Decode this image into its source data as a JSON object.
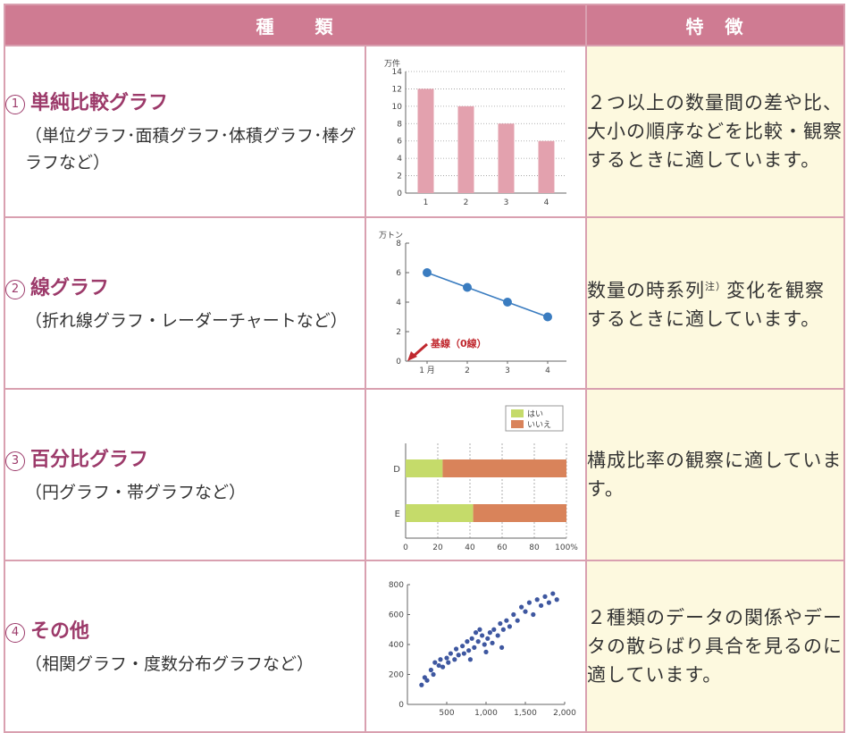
{
  "header": {
    "type": "種　　類",
    "feature": "特　徴"
  },
  "rows": [
    {
      "num": "1",
      "name": "単純比較グラフ",
      "sub": "（単位グラフ･面積グラフ･体積グラフ･棒グラフなど）",
      "feature": "２つ以上の数量間の差や比、大小の順序などを比較・観察するときに適しています。"
    },
    {
      "num": "2",
      "name": "線グラフ",
      "sub": "（折れ線グラフ・レーダーチャートなど）",
      "feature_a": "数量の時系列",
      "feature_sup": "注）",
      "feature_b": "変化を観察するときに適しています。"
    },
    {
      "num": "3",
      "name": "百分比グラフ",
      "sub": "（円グラフ・帯グラフなど）",
      "feature": "構成比率の観察に適しています。"
    },
    {
      "num": "4",
      "name": "その他",
      "sub": "（相関グラフ・度数分布グラフなど）",
      "feature": "２種類のデータの関係やデータの散らばり具合を見るのに適しています。"
    }
  ],
  "colors": {
    "header": "#cf7b92",
    "bar": "#e3a1ae",
    "line": "#3a7cc0",
    "yes": "#c5db6a",
    "no": "#d9835a",
    "dots": "#3e57a0"
  },
  "chart_data": [
    {
      "type": "bar",
      "ylabel": "万件",
      "categories": [
        "1",
        "2",
        "3",
        "4"
      ],
      "values": [
        12,
        10,
        8,
        6
      ],
      "ylim": [
        0,
        14
      ],
      "yticks": [
        0,
        2,
        4,
        6,
        8,
        10,
        12,
        14
      ]
    },
    {
      "type": "line",
      "ylabel": "万トン",
      "x": [
        "1 月",
        "2",
        "3",
        "4"
      ],
      "values": [
        6,
        5,
        4,
        3
      ],
      "ylim": [
        0,
        8
      ],
      "yticks": [
        0,
        2,
        4,
        6,
        8
      ],
      "annotation": "基線（0線）"
    },
    {
      "type": "bar",
      "orientation": "horizontal-stacked",
      "categories": [
        "D",
        "E"
      ],
      "series": [
        {
          "name": "はい",
          "values": [
            23,
            42
          ]
        },
        {
          "name": "いいえ",
          "values": [
            77,
            58
          ]
        }
      ],
      "xticks": [
        "0",
        "20",
        "40",
        "60",
        "80",
        "100%"
      ]
    },
    {
      "type": "scatter",
      "xticks": [
        "500",
        "1,000",
        "1,500",
        "2,000"
      ],
      "yticks": [
        "0",
        "200",
        "400",
        "600",
        "800"
      ],
      "xlim": [
        0,
        2000
      ],
      "ylim": [
        0,
        800
      ],
      "points": [
        [
          180,
          130
        ],
        [
          220,
          180
        ],
        [
          250,
          160
        ],
        [
          300,
          230
        ],
        [
          330,
          200
        ],
        [
          350,
          280
        ],
        [
          400,
          260
        ],
        [
          420,
          300
        ],
        [
          450,
          250
        ],
        [
          500,
          310
        ],
        [
          520,
          280
        ],
        [
          550,
          340
        ],
        [
          600,
          300
        ],
        [
          620,
          370
        ],
        [
          650,
          330
        ],
        [
          700,
          390
        ],
        [
          720,
          340
        ],
        [
          760,
          420
        ],
        [
          780,
          360
        ],
        [
          800,
          300
        ],
        [
          820,
          440
        ],
        [
          850,
          380
        ],
        [
          870,
          480
        ],
        [
          900,
          420
        ],
        [
          920,
          500
        ],
        [
          950,
          460
        ],
        [
          980,
          400
        ],
        [
          1000,
          350
        ],
        [
          1020,
          440
        ],
        [
          1050,
          480
        ],
        [
          1080,
          410
        ],
        [
          1100,
          500
        ],
        [
          1150,
          460
        ],
        [
          1180,
          540
        ],
        [
          1200,
          380
        ],
        [
          1220,
          500
        ],
        [
          1260,
          560
        ],
        [
          1300,
          520
        ],
        [
          1350,
          600
        ],
        [
          1400,
          560
        ],
        [
          1450,
          650
        ],
        [
          1500,
          620
        ],
        [
          1550,
          680
        ],
        [
          1600,
          600
        ],
        [
          1650,
          700
        ],
        [
          1700,
          660
        ],
        [
          1750,
          720
        ],
        [
          1800,
          680
        ],
        [
          1850,
          740
        ],
        [
          1900,
          700
        ]
      ]
    }
  ]
}
